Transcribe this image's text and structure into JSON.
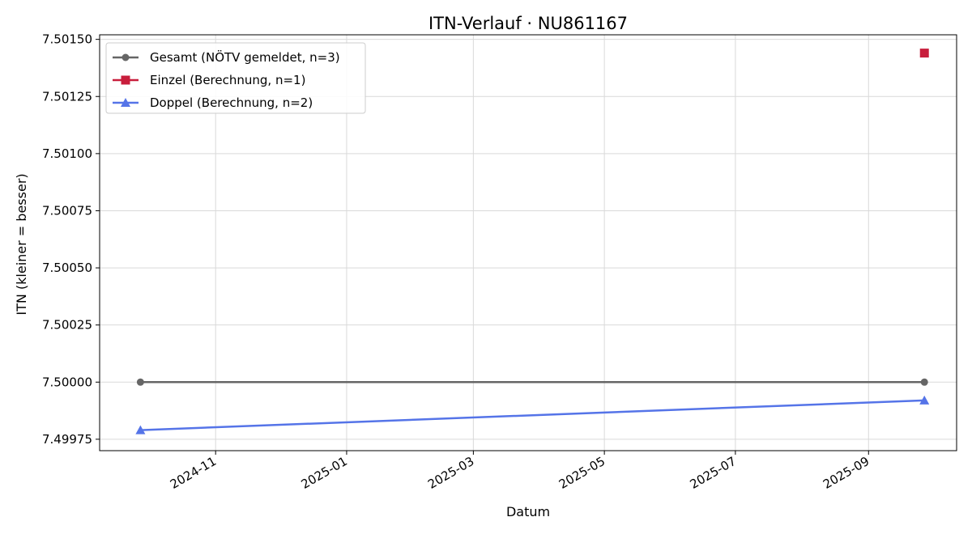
{
  "chart_data": {
    "type": "line",
    "title": "ITN-Verlauf · NU861167",
    "xlabel": "Datum",
    "ylabel": "ITN  (kleiner = besser)",
    "x_type": "date",
    "xlim": [
      "2024-09-08",
      "2025-10-12"
    ],
    "ylim": [
      7.4997,
      7.50152
    ],
    "x_ticks": [
      "2024-11",
      "2025-01",
      "2025-03",
      "2025-05",
      "2025-07",
      "2025-09"
    ],
    "y_ticks": [
      "7.49975",
      "7.50000",
      "7.50025",
      "7.50050",
      "7.50075",
      "7.50100",
      "7.50125",
      "7.50150"
    ],
    "grid": true,
    "legend_position": "top-left",
    "series": [
      {
        "name": "Gesamt (NÖTV gemeldet, n=3)",
        "color": "#666666",
        "marker": "circle",
        "line": true,
        "points": [
          {
            "x": "2024-09-27",
            "y": 7.5
          },
          {
            "x": "2025-09-27",
            "y": 7.5
          }
        ]
      },
      {
        "name": "Einzel (Berechnung, n=1)",
        "color": "#c81e3c",
        "marker": "square",
        "line": true,
        "points": [
          {
            "x": "2025-09-27",
            "y": 7.50144
          }
        ]
      },
      {
        "name": "Doppel (Berechnung, n=2)",
        "color": "#5574e8",
        "marker": "triangle",
        "line": true,
        "points": [
          {
            "x": "2024-09-27",
            "y": 7.49979
          },
          {
            "x": "2025-09-27",
            "y": 7.49992
          }
        ]
      }
    ]
  }
}
